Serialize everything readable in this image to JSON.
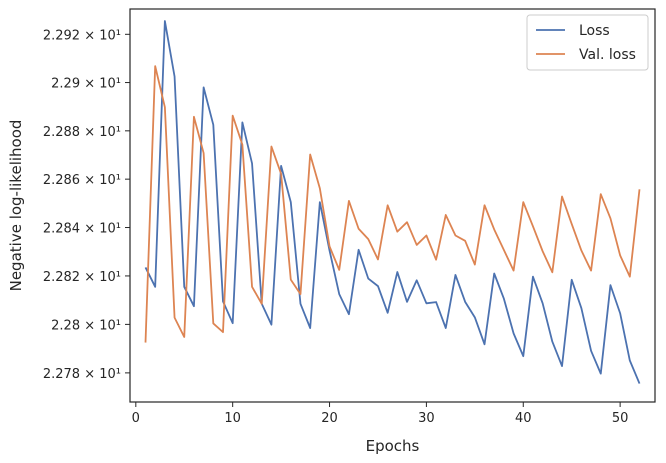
{
  "chart_data": {
    "type": "line",
    "xlabel": "Epochs",
    "ylabel": "Negative log-likelihood",
    "xlim": [
      -0.6,
      53.6
    ],
    "ylim": [
      22.768,
      22.9305
    ],
    "x_scale": "linear",
    "y_scale": "log",
    "xticks": [
      {
        "value": 0,
        "label": "0"
      },
      {
        "value": 10,
        "label": "10"
      },
      {
        "value": 20,
        "label": "20"
      },
      {
        "value": 30,
        "label": "30"
      },
      {
        "value": 40,
        "label": "40"
      },
      {
        "value": 50,
        "label": "50"
      }
    ],
    "yticks": [
      {
        "value": 22.78,
        "label": "2.278 × 10¹"
      },
      {
        "value": 22.8,
        "label": "2.28 × 10¹"
      },
      {
        "value": 22.82,
        "label": "2.282 × 10¹"
      },
      {
        "value": 22.84,
        "label": "2.284 × 10¹"
      },
      {
        "value": 22.86,
        "label": "2.286 × 10¹"
      },
      {
        "value": 22.88,
        "label": "2.288 × 10¹"
      },
      {
        "value": 22.9,
        "label": "2.29 × 10¹"
      },
      {
        "value": 22.92,
        "label": "2.292 × 10¹"
      }
    ],
    "grid": false,
    "legend_position": "top-right",
    "x": [
      1,
      2,
      3,
      4,
      5,
      6,
      7,
      8,
      9,
      10,
      11,
      12,
      13,
      14,
      15,
      16,
      17,
      18,
      19,
      20,
      21,
      22,
      23,
      24,
      25,
      26,
      27,
      28,
      29,
      30,
      31,
      32,
      33,
      34,
      35,
      36,
      37,
      38,
      39,
      40,
      41,
      42,
      43,
      44,
      45,
      46,
      47,
      48,
      49,
      50,
      51,
      52
    ],
    "series": [
      {
        "name": "Loss",
        "color": "#4c72b0",
        "values": [
          22.8235,
          22.8155,
          22.9255,
          22.9025,
          22.8155,
          22.8075,
          22.898,
          22.8825,
          22.8095,
          22.8005,
          22.8835,
          22.8665,
          22.8085,
          22.7999,
          22.8655,
          22.8505,
          22.8085,
          22.7985,
          22.8505,
          22.8305,
          22.8125,
          22.8042,
          22.8308,
          22.8189,
          22.8158,
          22.8048,
          22.8216,
          22.8093,
          22.8182,
          22.8087,
          22.8092,
          22.7985,
          22.8204,
          22.8093,
          22.8029,
          22.7918,
          22.821,
          22.8106,
          22.7963,
          22.7869,
          22.8197,
          22.8087,
          22.7929,
          22.7828,
          22.8184,
          22.8067,
          22.7891,
          22.7797,
          22.8162,
          22.8046,
          22.7851,
          22.7756
        ]
      },
      {
        "name": "Val. loss",
        "color": "#dd8452",
        "values": [
          22.7925,
          22.9068,
          22.8898,
          22.8028,
          22.7948,
          22.8858,
          22.8708,
          22.8004,
          22.7968,
          22.8863,
          22.8743,
          22.8155,
          22.8085,
          22.8735,
          22.8622,
          22.8185,
          22.8125,
          22.8702,
          22.8562,
          22.8322,
          22.8225,
          22.851,
          22.8395,
          22.8352,
          22.8268,
          22.8492,
          22.8383,
          22.8422,
          22.8328,
          22.8367,
          22.8267,
          22.8452,
          22.8367,
          22.8345,
          22.8247,
          22.8492,
          22.8392,
          22.8307,
          22.8222,
          22.8505,
          22.8405,
          22.8302,
          22.8215,
          22.8528,
          22.8415,
          22.8305,
          22.8222,
          22.8538,
          22.8438,
          22.8285,
          22.8197,
          22.8558
        ]
      }
    ]
  }
}
